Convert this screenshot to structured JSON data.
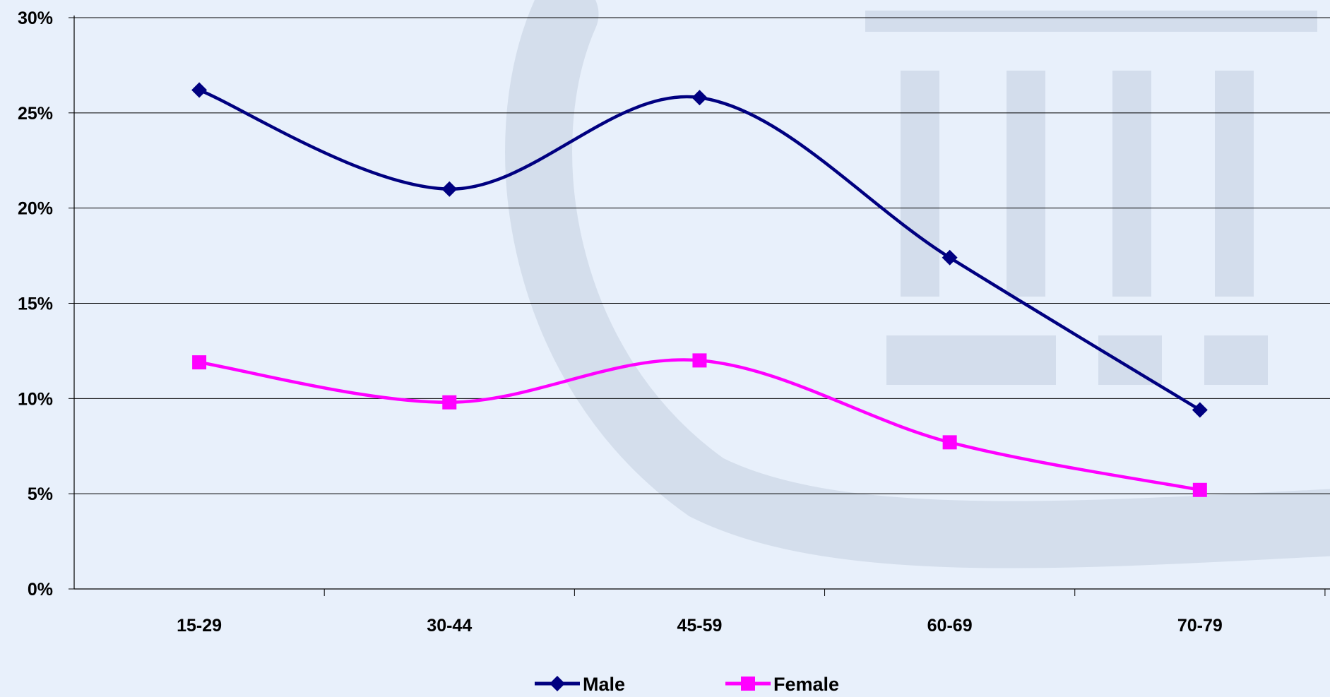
{
  "chart_data": {
    "type": "line",
    "categories": [
      "15-29",
      "30-44",
      "45-59",
      "60-69",
      "70-79"
    ],
    "series": [
      {
        "name": "Male",
        "values": [
          26.2,
          21.0,
          25.8,
          17.4,
          9.4
        ],
        "color": "#000080",
        "marker": "diamond"
      },
      {
        "name": "Female",
        "values": [
          11.9,
          9.8,
          12.0,
          7.7,
          5.2
        ],
        "color": "#ff00ff",
        "marker": "square"
      }
    ],
    "ylim": [
      0,
      30
    ],
    "yticks": [
      0,
      5,
      10,
      15,
      20,
      25,
      30
    ],
    "ytick_format": "percent",
    "grid": true,
    "legend_position": "bottom",
    "smooth": true
  },
  "colors": {
    "background": "#e8f0fb",
    "gridline": "#000000",
    "watermark": "#c3cfe0"
  }
}
